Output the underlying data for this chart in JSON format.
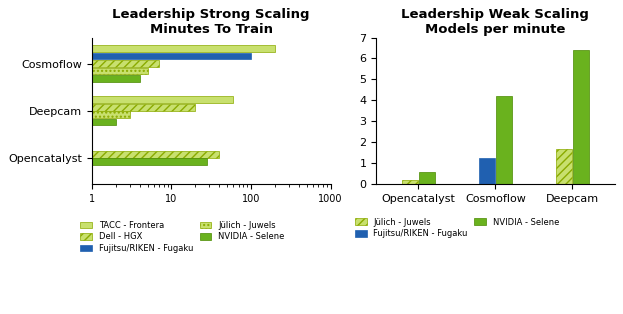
{
  "strong": {
    "title": "Leadership Strong Scaling",
    "subtitle": "Minutes To Train",
    "benchmarks": [
      "Cosmoflow",
      "Deepcam",
      "Opencatalyst"
    ],
    "series_order": [
      "TACC - Frontera",
      "Fujitsu/RIKEN - Fugaku",
      "Dell - HGX",
      "Jülich - Juwels",
      "NVIDIA - Selene"
    ],
    "series": {
      "TACC - Frontera": {
        "color": "#c8e06e",
        "hatch": "",
        "edgecolor": "#8aaa00",
        "values": [
          200,
          60,
          null
        ]
      },
      "Fujitsu/RIKEN - Fugaku": {
        "color": "#2060b0",
        "hatch": "",
        "edgecolor": "#2060b0",
        "values": [
          100,
          null,
          null
        ]
      },
      "Dell - HGX": {
        "color": "#c8e06e",
        "hatch": "////",
        "edgecolor": "#8aaa00",
        "values": [
          7,
          20,
          40
        ]
      },
      "Jülich - Juwels": {
        "color": "#c8e06e",
        "hatch": "....",
        "edgecolor": "#8aaa00",
        "values": [
          5,
          3,
          null
        ]
      },
      "NVIDIA - Selene": {
        "color": "#6ab21e",
        "hatch": "",
        "edgecolor": "#4a8a00",
        "values": [
          4,
          2,
          28
        ]
      }
    },
    "xlim": [
      1,
      1000
    ],
    "xticks": [
      1,
      10,
      100,
      1000
    ]
  },
  "weak": {
    "title": "Leadership Weak Scaling",
    "subtitle": "Models per minute",
    "benchmarks": [
      "Opencatalyst",
      "Cosmoflow",
      "Deepcam"
    ],
    "series_order": [
      "Jülich - Juwels",
      "Fujitsu/RIKEN - Fugaku",
      "NVIDIA - Selene"
    ],
    "series": {
      "Jülich - Juwels": {
        "color": "#c8e06e",
        "hatch": "////",
        "edgecolor": "#8aaa00",
        "values": [
          0.22,
          null,
          1.7
        ]
      },
      "Fujitsu/RIKEN - Fugaku": {
        "color": "#2060b0",
        "hatch": "",
        "edgecolor": "#2060b0",
        "values": [
          null,
          1.25,
          null
        ]
      },
      "NVIDIA - Selene": {
        "color": "#6ab21e",
        "hatch": "",
        "edgecolor": "#4a8a00",
        "values": [
          0.6,
          4.2,
          6.4
        ]
      }
    },
    "ylim": [
      0,
      7
    ],
    "yticks": [
      0,
      1,
      2,
      3,
      4,
      5,
      6,
      7
    ]
  }
}
